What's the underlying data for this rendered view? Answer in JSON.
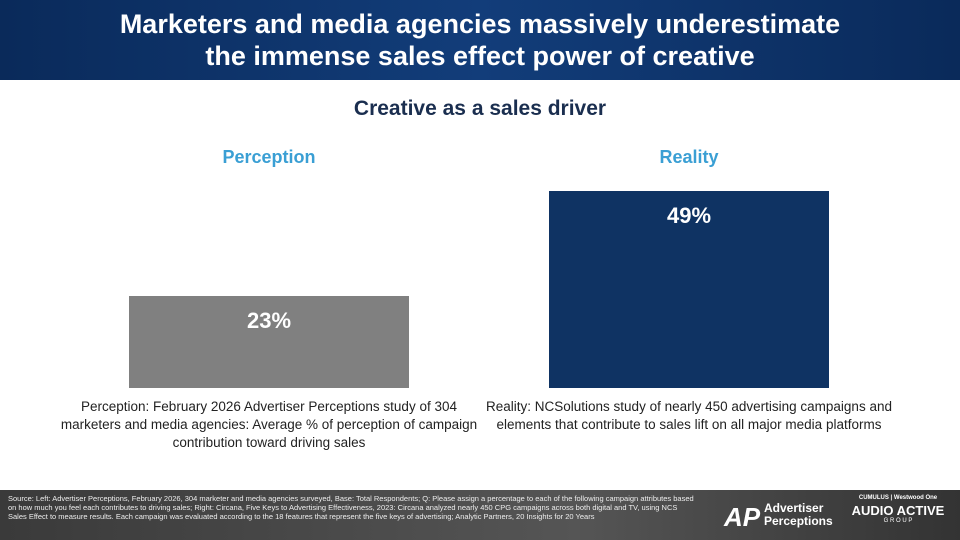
{
  "header": {
    "title_line1": "Marketers and media agencies massively underestimate",
    "title_line2": "the immense sales effect power of creative"
  },
  "chart_data": {
    "type": "bar",
    "title": "Creative as a sales driver",
    "categories": [
      "Perception",
      "Reality"
    ],
    "values": [
      23,
      49
    ],
    "value_labels": [
      "23%",
      "49%"
    ],
    "colors": [
      "#808080",
      "#0f3363"
    ],
    "ylim": [
      0,
      55
    ],
    "grid": false
  },
  "notes": {
    "left": "Perception: February 2026 Advertiser Perceptions study of 304 marketers and media agencies: Average % of perception of campaign contribution toward driving sales",
    "right": "Reality: NCSolutions study of nearly 450 advertising campaigns and elements that contribute to sales lift on all major media platforms"
  },
  "footer": {
    "source": "Source: Left: Advertiser Perceptions, February 2026, 304 marketer and media agencies surveyed, Base: Total Respondents; Q: Please assign a percentage to each of the following campaign attributes based on how much you feel each contributes to driving sales; Right: Circana, Five Keys to Advertising Effectiveness, 2023: Circana analyzed nearly 450 CPG campaigns across both digital and TV, using NCS Sales Effect to measure results. Each campaign was evaluated according to the 18 features that represent the five keys of advertising; Analytic Partners, 20 Insights for 20 Years",
    "logo1_line1": "Advertiser",
    "logo1_line2": "Perceptions",
    "logo2_top": "CUMULUS | Westwood One",
    "logo2_main": "AUDIO ACTIVE",
    "logo2_sub": "G R O U P"
  }
}
